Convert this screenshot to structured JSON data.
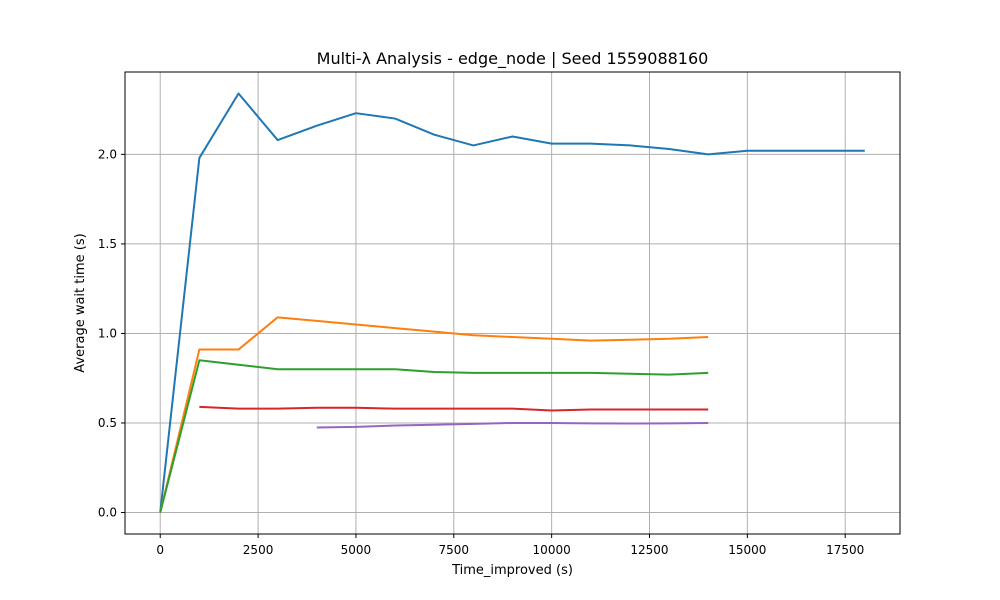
{
  "chart_data": {
    "type": "line",
    "title": "Multi-λ Analysis - edge_node | Seed 1559088160",
    "xlabel": "Time_improved (s)",
    "ylabel": "Average wait time (s)",
    "xlim": [
      -900,
      18900
    ],
    "ylim": [
      -0.12,
      2.46
    ],
    "xticks": [
      0,
      2500,
      5000,
      7500,
      10000,
      12500,
      15000,
      17500
    ],
    "xtick_labels": [
      "0",
      "2500",
      "5000",
      "7500",
      "10000",
      "12500",
      "15000",
      "17500"
    ],
    "yticks": [
      0.0,
      0.5,
      1.0,
      1.5,
      2.0
    ],
    "ytick_labels": [
      "0.0",
      "0.5",
      "1.0",
      "1.5",
      "2.0"
    ],
    "grid": true,
    "series": [
      {
        "color": "#1f77b4",
        "x": [
          0,
          1000,
          2000,
          3000,
          4000,
          5000,
          6000,
          7000,
          8000,
          9000,
          10000,
          11000,
          12000,
          13000,
          14000,
          15000,
          16000,
          17000,
          18000
        ],
        "y": [
          0.0,
          1.98,
          2.34,
          2.08,
          2.16,
          2.23,
          2.2,
          2.11,
          2.05,
          2.1,
          2.06,
          2.06,
          2.05,
          2.03,
          2.0,
          2.02,
          2.02,
          2.02,
          2.02
        ]
      },
      {
        "color": "#ff7f0e",
        "x": [
          0,
          1000,
          2000,
          3000,
          4000,
          5000,
          6000,
          7000,
          8000,
          9000,
          10000,
          11000,
          12000,
          13000,
          14000
        ],
        "y": [
          0.0,
          0.91,
          0.91,
          1.09,
          1.07,
          1.05,
          1.03,
          1.01,
          0.99,
          0.98,
          0.97,
          0.96,
          0.965,
          0.97,
          0.98
        ]
      },
      {
        "color": "#2ca02c",
        "x": [
          0,
          1000,
          2000,
          3000,
          4000,
          5000,
          6000,
          7000,
          8000,
          9000,
          10000,
          11000,
          12000,
          13000,
          14000
        ],
        "y": [
          0.0,
          0.85,
          0.825,
          0.8,
          0.8,
          0.8,
          0.8,
          0.785,
          0.78,
          0.78,
          0.78,
          0.78,
          0.775,
          0.77,
          0.78
        ]
      },
      {
        "color": "#d62728",
        "x": [
          1000,
          2000,
          3000,
          4000,
          5000,
          6000,
          7000,
          8000,
          9000,
          10000,
          11000,
          12000,
          13000,
          14000
        ],
        "y": [
          0.59,
          0.58,
          0.58,
          0.585,
          0.585,
          0.58,
          0.58,
          0.58,
          0.58,
          0.57,
          0.575,
          0.575,
          0.575,
          0.575
        ]
      },
      {
        "color": "#9467bd",
        "x": [
          4000,
          5000,
          6000,
          7000,
          8000,
          9000,
          10000,
          11000,
          12000,
          13000,
          14000
        ],
        "y": [
          0.475,
          0.478,
          0.486,
          0.49,
          0.495,
          0.5,
          0.5,
          0.498,
          0.497,
          0.498,
          0.5
        ]
      }
    ]
  }
}
